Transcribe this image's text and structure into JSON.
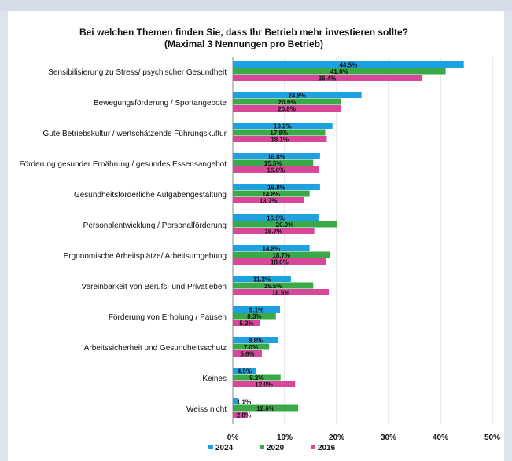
{
  "chart_data": {
    "type": "bar",
    "orientation": "horizontal",
    "title": "Bei welchen Themen finden Sie, dass Ihr Betrieb mehr investieren sollte?",
    "subtitle": "(Maximal 3 Nennungen pro Betrieb)",
    "categories": [
      "Sensibilisierung zu Stress/ psychischer Gesundheit",
      "Bewegungsförderung / Sportangebote",
      "Gute Betriebskultur / wertschätzende Führungskultur",
      "Förderung gesunder Ernährung / gesundes Essensangebot",
      "Gesundheitsförderliche Aufgabengestaltung",
      "Personalentwicklung / Personalförderung",
      "Ergonomische Arbeitsplätze/ Arbeitsumgebung",
      "Vereinbarkeit von Berufs- und Privatleben",
      "Förderung von Erholung / Pausen",
      "Arbeitssicherheit und Gesundheitsschutz",
      "Keines",
      "Weiss nicht"
    ],
    "series": [
      {
        "name": "2024",
        "color": "#1ea1e0",
        "values": [
          44.5,
          24.8,
          19.2,
          16.8,
          16.8,
          16.5,
          14.8,
          11.2,
          9.1,
          8.8,
          4.5,
          1.1
        ],
        "labels": [
          "44.5%",
          "24.8%",
          "19.2%",
          "16.8%",
          "16.8%",
          "16.5%",
          "14.8%",
          "11.2%",
          "9.1%",
          "8.8%",
          "4.5%",
          "1.1%"
        ]
      },
      {
        "name": "2020",
        "color": "#3aaa48",
        "values": [
          41.0,
          20.9,
          17.8,
          15.5,
          14.8,
          20.0,
          18.7,
          15.5,
          8.3,
          7.0,
          9.2,
          12.6
        ],
        "labels": [
          "41.0%",
          "20.9%",
          "17.8%",
          "15.5%",
          "14.8%",
          "20.0%",
          "18.7%",
          "15.5%",
          "8.3%",
          "7.0%",
          "9.2%",
          "12.6%"
        ]
      },
      {
        "name": "2016",
        "color": "#d9479b",
        "values": [
          36.4,
          20.8,
          18.1,
          16.6,
          13.7,
          15.7,
          18.0,
          18.5,
          5.3,
          5.6,
          12.0,
          2.8
        ],
        "labels": [
          "36.4%",
          "20.8%",
          "18.1%",
          "16.6%",
          "13.7%",
          "15.7%",
          "18.0%",
          "18.5%",
          "5.3%",
          "5.6%",
          "12.0%",
          "2.8%"
        ]
      }
    ],
    "xlim": [
      0,
      50
    ],
    "xticks": [
      0,
      10,
      20,
      30,
      40,
      50
    ],
    "xtick_labels": [
      "0%",
      "10%",
      "20%",
      "30%",
      "40%",
      "50%"
    ],
    "grid": true,
    "legend_position": "bottom-center"
  }
}
